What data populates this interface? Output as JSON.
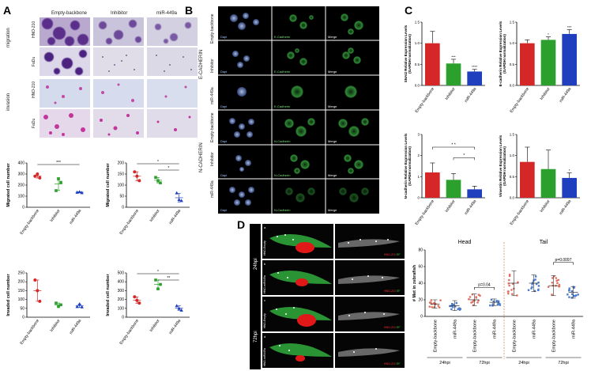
{
  "figure": {
    "panels": {
      "A": "A",
      "B": "B",
      "C": "C",
      "D": "D"
    }
  },
  "panelA": {
    "columns": [
      "Empty-backbone",
      "Inhibitor",
      "miR-449a"
    ],
    "row_groups": [
      "migration",
      "invasion"
    ],
    "row_labels": [
      "HNO-210",
      "FaDu",
      "HNO-210",
      "FaDu"
    ],
    "colors": {
      "empty": "#d62728",
      "inhibitor": "#2ca02c",
      "mir": "#1f3fbf"
    }
  },
  "panelB": {
    "columns": [
      "Dapi",
      "E-Cadherin",
      "Merge"
    ],
    "row_labels": [
      "Empty-backbone",
      "Inhibitor",
      "miR-449a",
      "Empty-backbone",
      "Inhibitor",
      "miR-449a"
    ],
    "groups": [
      "E-CADHERIN",
      "N-CADHERIN"
    ],
    "in_image_labels": [
      "Dapi",
      "E-Cadherin",
      "Merge",
      "Dapi",
      "N-Cadherin",
      "Merge"
    ]
  },
  "panelD": {
    "time_labels": [
      "24hpi",
      "72hpi"
    ],
    "row_labels": [
      "HNO-Empty",
      "HNO-miR449a",
      "HNO-Empty",
      "HNO-miR449a"
    ],
    "overlay_labels": [
      "a",
      "b",
      "c",
      "d"
    ],
    "legend": {
      "red": "HNO-210",
      "green": "EF"
    }
  },
  "chart_data": [
    {
      "type": "scatter",
      "panel": "A-1",
      "categories": [
        "Empty-backbone",
        "Inhibitor",
        "miR-449a"
      ],
      "ylabel": "Migrated cell number",
      "ylim": [
        0,
        400
      ],
      "yticks": [
        "0",
        "100",
        "200",
        "300",
        "400"
      ],
      "points": [
        [
          280,
          300,
          265
        ],
        [
          150,
          255,
          225
        ],
        [
          135,
          140,
          132
        ]
      ],
      "mean": [
        282,
        210,
        136
      ],
      "sd": [
        18,
        58,
        4
      ],
      "annotations": [
        "***"
      ]
    },
    {
      "type": "scatter",
      "panel": "A-2",
      "categories": [
        "Empty-backbone",
        "Inhibitor",
        "miR-449a"
      ],
      "ylabel": "Migrated cell number",
      "ylim": [
        0,
        200
      ],
      "yticks": [
        "0",
        "50",
        "100",
        "150",
        "200"
      ],
      "points": [
        [
          160,
          140,
          120
        ],
        [
          135,
          120,
          110
        ],
        [
          65,
          35,
          30
        ]
      ],
      "mean": [
        140,
        122,
        43
      ],
      "sd": [
        20,
        12,
        19
      ],
      "annotations": [
        "*",
        "*"
      ]
    },
    {
      "type": "scatter",
      "panel": "A-3",
      "categories": [
        "Empty-backbone",
        "Inhibitor",
        "miR-449a"
      ],
      "ylabel": "Invaded cell number",
      "ylim": [
        0,
        250
      ],
      "yticks": [
        "0",
        "50",
        "100",
        "150",
        "200",
        "250"
      ],
      "points": [
        [
          210,
          150,
          90
        ],
        [
          80,
          60,
          70
        ],
        [
          60,
          75,
          58
        ]
      ],
      "mean": [
        150,
        70,
        64
      ],
      "sd": [
        60,
        10,
        9
      ],
      "annotations": []
    },
    {
      "type": "scatter",
      "panel": "A-4",
      "categories": [
        "Empty-backbone",
        "Inhibitor",
        "miR-449a"
      ],
      "ylabel": "Invaded cell number",
      "ylim": [
        0,
        500
      ],
      "yticks": [
        "0",
        "100",
        "200",
        "300",
        "400",
        "500"
      ],
      "points": [
        [
          230,
          190,
          160
        ],
        [
          420,
          320,
          370
        ],
        [
          130,
          100,
          80
        ]
      ],
      "mean": [
        193,
        370,
        103
      ],
      "sd": [
        35,
        50,
        25
      ],
      "annotations": [
        "*",
        "**"
      ]
    },
    {
      "type": "bar",
      "panel": "C-1",
      "categories": [
        "Empty-backbone",
        "Inhibitor",
        "miR-449a"
      ],
      "ylabel": "SNAI2 Relative Expression Levels (GAPDH normalization)",
      "ylim": [
        0,
        1.5
      ],
      "yticks": [
        "0.0",
        "0.5",
        "1.0",
        "1.5"
      ],
      "values": [
        1.0,
        0.52,
        0.33
      ],
      "errors": [
        0.28,
        0.1,
        0.05
      ],
      "annotations": [
        "",
        "***",
        "****"
      ]
    },
    {
      "type": "bar",
      "panel": "C-2",
      "categories": [
        "Empty-backbone",
        "Inhibitor",
        "miR-449a"
      ],
      "ylabel": "E-cadherin Relative Expression Levels (GAPDH normalization)",
      "ylim": [
        0,
        1.5
      ],
      "yticks": [
        "0.0",
        "0.5",
        "1.0",
        "1.5"
      ],
      "values": [
        1.0,
        1.08,
        1.22
      ],
      "errors": [
        0.08,
        0.07,
        0.1
      ],
      "annotations": [
        "",
        "*",
        "***"
      ]
    },
    {
      "type": "bar",
      "panel": "C-3",
      "categories": [
        "Empty-backbone",
        "Inhibitor",
        "miR-449a"
      ],
      "ylabel": "N-cadherin Relative Expression Levels (GAPDH normalization)",
      "ylim": [
        0,
        3
      ],
      "yticks": [
        "0",
        "1",
        "2",
        "3"
      ],
      "values": [
        1.2,
        0.85,
        0.4
      ],
      "errors": [
        0.45,
        0.3,
        0.15
      ],
      "annotations": [
        "* *",
        "*"
      ]
    },
    {
      "type": "bar",
      "panel": "C-4",
      "categories": [
        "Empty-backbone",
        "Inhibitor",
        "miR-449a"
      ],
      "ylabel": "Vimentin Relative Expression Levels (GAPDH normalization)",
      "ylim": [
        0,
        1.5
      ],
      "yticks": [
        "0.0",
        "0.5",
        "1.0",
        "1.5"
      ],
      "values": [
        0.85,
        0.68,
        0.47
      ],
      "errors": [
        0.35,
        0.45,
        0.12
      ],
      "annotations": [
        "",
        "",
        "*"
      ]
    },
    {
      "type": "scatter",
      "panel": "D-plot",
      "ylabel": "# Met in zebrafish",
      "ylim": [
        0,
        80
      ],
      "yticks": [
        "0",
        "20",
        "40",
        "60",
        "80"
      ],
      "sections": [
        "Head",
        "Tail"
      ],
      "categories": [
        "Empty-backbone",
        "miR-449a",
        "Empty-backbone",
        "miR-449a",
        "Empty-backbone",
        "miR-449a",
        "Empty-backbone",
        "miR-449a"
      ],
      "time_labels": [
        "24hpi",
        "72hpi",
        "24hpi",
        "72hpi"
      ],
      "means": [
        15,
        13,
        20,
        17,
        40,
        40,
        37,
        29
      ],
      "sd": [
        5,
        6,
        7,
        4,
        15,
        10,
        12,
        7
      ],
      "annotations": [
        "p=0.04",
        "p=0.0097"
      ]
    }
  ]
}
